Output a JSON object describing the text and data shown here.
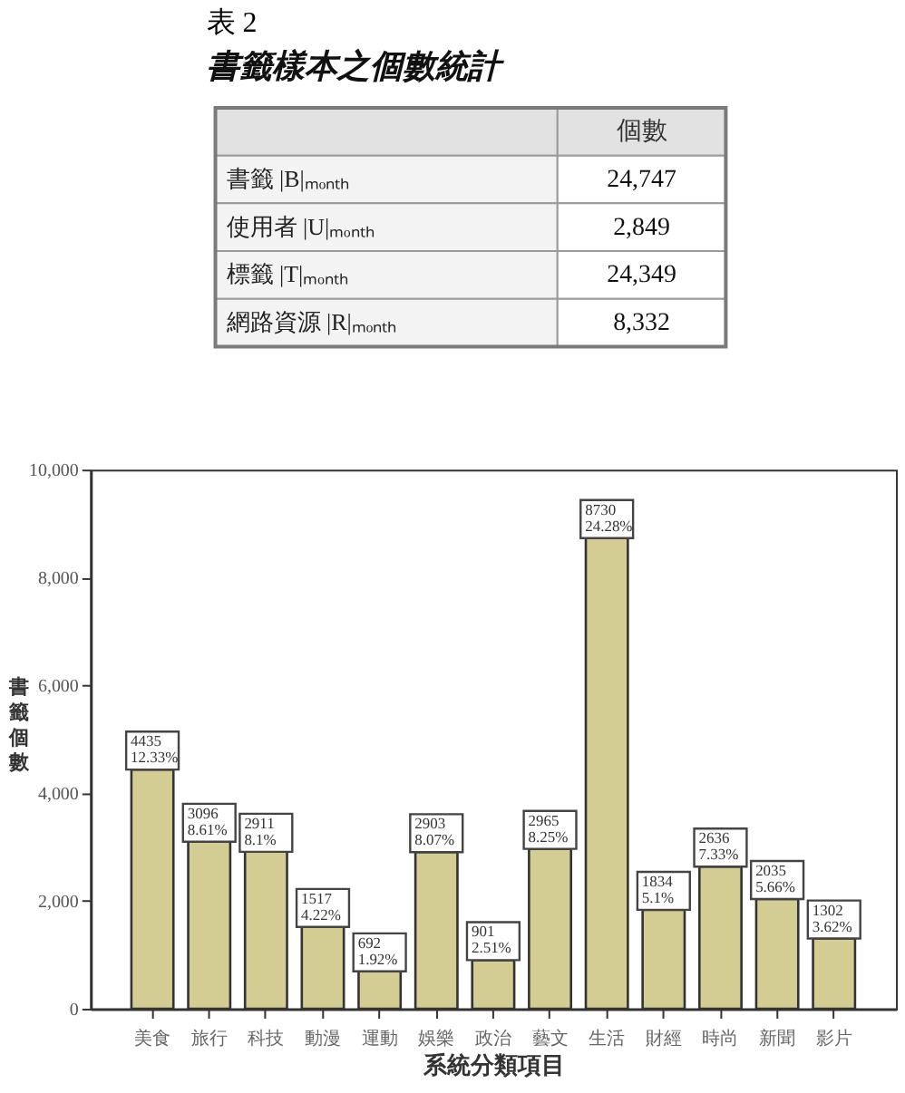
{
  "chart_data": [
    {
      "type": "other",
      "title": "表 2",
      "subtitle": "書籤樣本之個數統計",
      "ylabel": "個數",
      "categories": [
        "書籤 |B|ₘₒₙₜₕ",
        "使用者 |U|ₘₒₙₜₕ",
        "標籤 |T|ₘₒₙₜₕ",
        "網路資源 |R|ₘₒₙₜₕ"
      ],
      "values": [
        24747,
        2849,
        24349,
        8332
      ],
      "value_labels": [
        "24,747",
        "2,849",
        "24,349",
        "8,332"
      ]
    },
    {
      "type": "bar",
      "xlabel": "系統分類項目",
      "ylabel": "書籤個數",
      "categories": [
        "美食",
        "旅行",
        "科技",
        "動漫",
        "運動",
        "娛樂",
        "政治",
        "藝文",
        "生活",
        "財經",
        "時尚",
        "新聞",
        "影片"
      ],
      "values": [
        4435,
        3096,
        2911,
        1517,
        692,
        2903,
        901,
        2965,
        8730,
        1834,
        2636,
        2035,
        1302
      ],
      "value_labels": [
        "4435\n12.33%",
        "3096\n8.61%",
        "2911\n8.1%",
        "1517\n4.22%",
        "692\n1.92%",
        "2903\n8.07%",
        "901\n2.51%",
        "2965\n8.25%",
        "8730\n24.28%",
        "1834\n5.1%",
        "2636\n7.33%",
        "2035\n5.66%",
        "1302\n3.62%"
      ],
      "color": "#d3cd93",
      "ylim": [
        0,
        10000
      ],
      "yticks": [
        0,
        {
          "value": 2000,
          "label": "2,000"
        },
        {
          "value": 4000,
          "label": "4,000"
        },
        {
          "value": 6000,
          "label": "6,000"
        },
        {
          "value": 8000,
          "label": "8,000"
        },
        {
          "value": 10000,
          "label": "10,000"
        }
      ]
    }
  ]
}
